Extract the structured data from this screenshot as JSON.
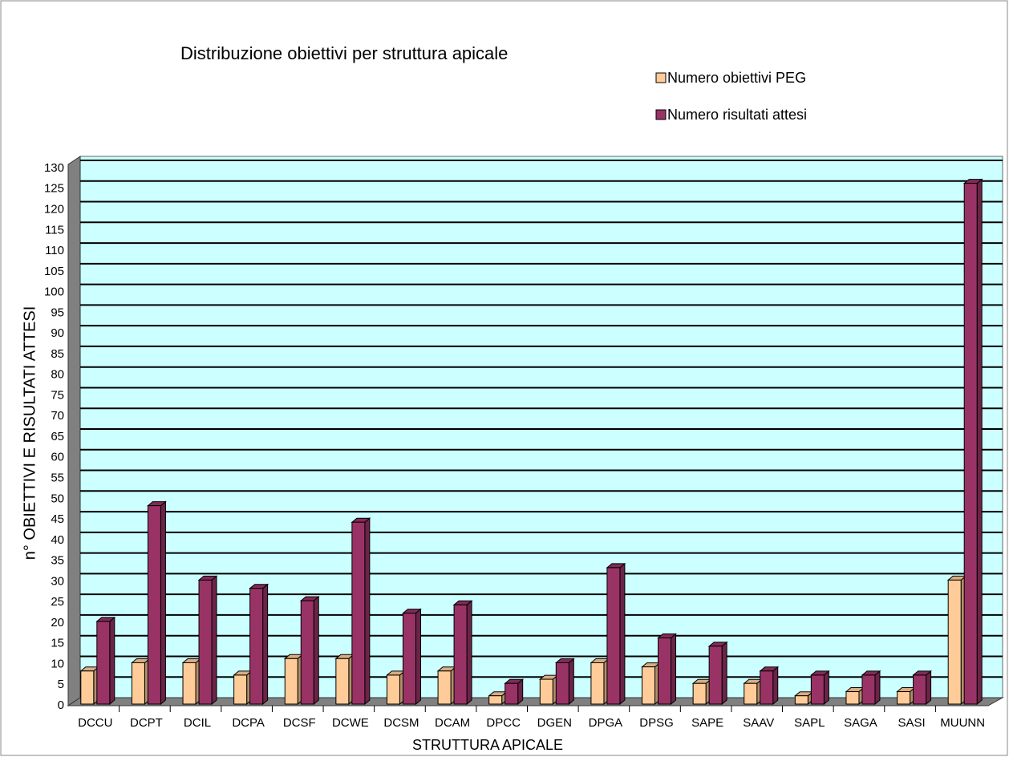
{
  "chart_data": {
    "type": "bar",
    "title": "Distribuzione obiettivi per struttura apicale",
    "xlabel": "STRUTTURA APICALE",
    "ylabel": "n° OBIETTIVI E RISULTATI ATTESI",
    "categories": [
      "DCCU",
      "DCPT",
      "DCIL",
      "DCPA",
      "DCSF",
      "DCWE",
      "DCSM",
      "DCAM",
      "DPCC",
      "DGEN",
      "DPGA",
      "DPSG",
      "SAPE",
      "SAAV",
      "SAPL",
      "SAGA",
      "SASI",
      "MUUNN"
    ],
    "series": [
      {
        "name": "Numero obiettivi PEG",
        "color": "#ffcc99",
        "values": [
          8,
          10,
          10,
          7,
          11,
          11,
          7,
          8,
          2,
          6,
          10,
          9,
          5,
          5,
          2,
          3,
          3,
          30
        ]
      },
      {
        "name": "Numero risultati attesi",
        "color": "#993366",
        "values": [
          20,
          48,
          30,
          28,
          25,
          44,
          22,
          24,
          5,
          10,
          33,
          16,
          14,
          8,
          7,
          7,
          7,
          126
        ]
      }
    ],
    "ylim": [
      0,
      130
    ],
    "yticks": [
      0,
      5,
      10,
      15,
      20,
      25,
      30,
      35,
      40,
      45,
      50,
      55,
      60,
      65,
      70,
      75,
      80,
      85,
      90,
      95,
      100,
      105,
      110,
      115,
      120,
      125,
      130
    ],
    "grid": true,
    "legend": "top-right"
  }
}
